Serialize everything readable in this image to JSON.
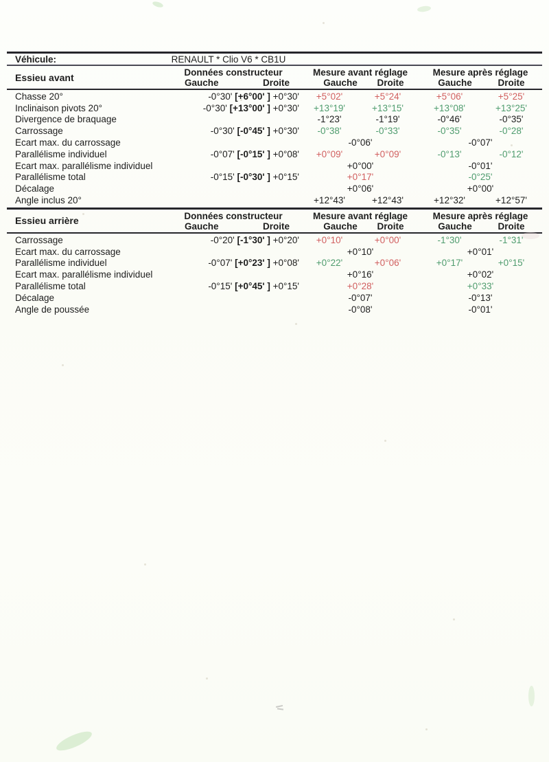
{
  "vehicle": {
    "label": "Véhicule:",
    "value": "RENAULT * Clio V6 * CB1U"
  },
  "header_labels": {
    "constructor": "Données constructeur",
    "before": "Mesure avant réglage",
    "after": "Mesure après réglage",
    "left": "Gauche",
    "right": "Droite"
  },
  "status_colors": {
    "out_of_spec": "#d15f5f",
    "in_spec": "#4f9c6e",
    "neutral": "#1d1d1d"
  },
  "front_axle": {
    "title": "Essieu avant",
    "rows": [
      {
        "label": "Chasse 20°",
        "spec": {
          "min": "-0°30'",
          "nominal": "[+6°00' ]",
          "max": "+0°30'"
        },
        "layout": "four",
        "values": [
          {
            "text": "+5°02'",
            "status": "out_of_spec"
          },
          {
            "text": "+5°24'",
            "status": "out_of_spec"
          },
          {
            "text": "+5°06'",
            "status": "out_of_spec"
          },
          {
            "text": "+5°25'",
            "status": "out_of_spec"
          }
        ]
      },
      {
        "label": "Inclinaison pivots 20°",
        "spec": {
          "min": "-0°30'",
          "nominal": "[+13°00' ]",
          "max": "+0°30'"
        },
        "layout": "four",
        "values": [
          {
            "text": "+13°19'",
            "status": "in_spec"
          },
          {
            "text": "+13°15'",
            "status": "in_spec"
          },
          {
            "text": "+13°08'",
            "status": "in_spec"
          },
          {
            "text": "+13°25'",
            "status": "in_spec"
          }
        ]
      },
      {
        "label": "Divergence de braquage",
        "layout": "four",
        "values": [
          {
            "text": "-1°23'",
            "status": "neutral"
          },
          {
            "text": "-1°19'",
            "status": "neutral"
          },
          {
            "text": "-0°46'",
            "status": "neutral"
          },
          {
            "text": "-0°35'",
            "status": "neutral"
          }
        ]
      },
      {
        "label": "Carrossage",
        "spec": {
          "min": "-0°30'",
          "nominal": "[-0°45' ]",
          "max": "+0°30'"
        },
        "layout": "four",
        "values": [
          {
            "text": "-0°38'",
            "status": "in_spec"
          },
          {
            "text": "-0°33'",
            "status": "in_spec"
          },
          {
            "text": "-0°35'",
            "status": "in_spec"
          },
          {
            "text": "-0°28'",
            "status": "in_spec"
          }
        ]
      },
      {
        "label": "Ecart max. du carrossage",
        "layout": "pair",
        "values": [
          {
            "text": "-0°06'",
            "status": "neutral"
          },
          {
            "text": "-0°07'",
            "status": "neutral"
          }
        ]
      },
      {
        "label": "Parallélisme individuel",
        "spec": {
          "min": "-0°07'",
          "nominal": "[-0°15' ]",
          "max": "+0°08'"
        },
        "layout": "four",
        "values": [
          {
            "text": "+0°09'",
            "status": "out_of_spec"
          },
          {
            "text": "+0°09'",
            "status": "out_of_spec"
          },
          {
            "text": "-0°13'",
            "status": "in_spec"
          },
          {
            "text": "-0°12'",
            "status": "in_spec"
          }
        ]
      },
      {
        "label": "Ecart max. parallélisme individuel",
        "layout": "pair",
        "values": [
          {
            "text": "+0°00'",
            "status": "neutral"
          },
          {
            "text": "-0°01'",
            "status": "neutral"
          }
        ]
      },
      {
        "label": "Parallélisme total",
        "spec": {
          "min": "-0°15'",
          "nominal": "[-0°30' ]",
          "max": "+0°15'"
        },
        "layout": "pair",
        "values": [
          {
            "text": "+0°17'",
            "status": "out_of_spec"
          },
          {
            "text": "-0°25'",
            "status": "in_spec"
          }
        ]
      },
      {
        "label": "Décalage",
        "layout": "pair",
        "values": [
          {
            "text": "+0°06'",
            "status": "neutral"
          },
          {
            "text": "+0°00'",
            "status": "neutral"
          }
        ]
      },
      {
        "label": "Angle inclus 20°",
        "layout": "four",
        "values": [
          {
            "text": "+12°43'",
            "status": "neutral"
          },
          {
            "text": "+12°43'",
            "status": "neutral"
          },
          {
            "text": "+12°32'",
            "status": "neutral"
          },
          {
            "text": "+12°57'",
            "status": "neutral"
          }
        ]
      }
    ]
  },
  "rear_axle": {
    "title": "Essieu arrière",
    "rows": [
      {
        "label": "Carrossage",
        "spec": {
          "min": "-0°20'",
          "nominal": "[-1°30' ]",
          "max": "+0°20'"
        },
        "layout": "four",
        "values": [
          {
            "text": "+0°10'",
            "status": "out_of_spec"
          },
          {
            "text": "+0°00'",
            "status": "out_of_spec"
          },
          {
            "text": "-1°30'",
            "status": "in_spec"
          },
          {
            "text": "-1°31'",
            "status": "in_spec"
          }
        ]
      },
      {
        "label": "Ecart max. du carrossage",
        "layout": "pair",
        "values": [
          {
            "text": "+0°10'",
            "status": "neutral"
          },
          {
            "text": "+0°01'",
            "status": "neutral"
          }
        ]
      },
      {
        "label": "Parallélisme individuel",
        "spec": {
          "min": "-0°07'",
          "nominal": "[+0°23' ]",
          "max": "+0°08'"
        },
        "layout": "four",
        "values": [
          {
            "text": "+0°22'",
            "status": "in_spec"
          },
          {
            "text": "+0°06'",
            "status": "out_of_spec"
          },
          {
            "text": "+0°17'",
            "status": "in_spec"
          },
          {
            "text": "+0°15'",
            "status": "in_spec"
          }
        ]
      },
      {
        "label": "Ecart max. parallélisme individuel",
        "layout": "pair",
        "values": [
          {
            "text": "+0°16'",
            "status": "neutral"
          },
          {
            "text": "+0°02'",
            "status": "neutral"
          }
        ]
      },
      {
        "label": "Parallélisme total",
        "spec": {
          "min": "-0°15'",
          "nominal": "[+0°45' ]",
          "max": "+0°15'"
        },
        "layout": "pair",
        "values": [
          {
            "text": "+0°28'",
            "status": "out_of_spec"
          },
          {
            "text": "+0°33'",
            "status": "in_spec"
          }
        ]
      },
      {
        "label": "Décalage",
        "layout": "pair",
        "values": [
          {
            "text": "-0°07'",
            "status": "neutral"
          },
          {
            "text": "-0°13'",
            "status": "neutral"
          }
        ]
      },
      {
        "label": "Angle de poussée",
        "layout": "pair",
        "values": [
          {
            "text": "-0°08'",
            "status": "neutral"
          },
          {
            "text": "-0°01'",
            "status": "neutral"
          }
        ]
      }
    ]
  }
}
